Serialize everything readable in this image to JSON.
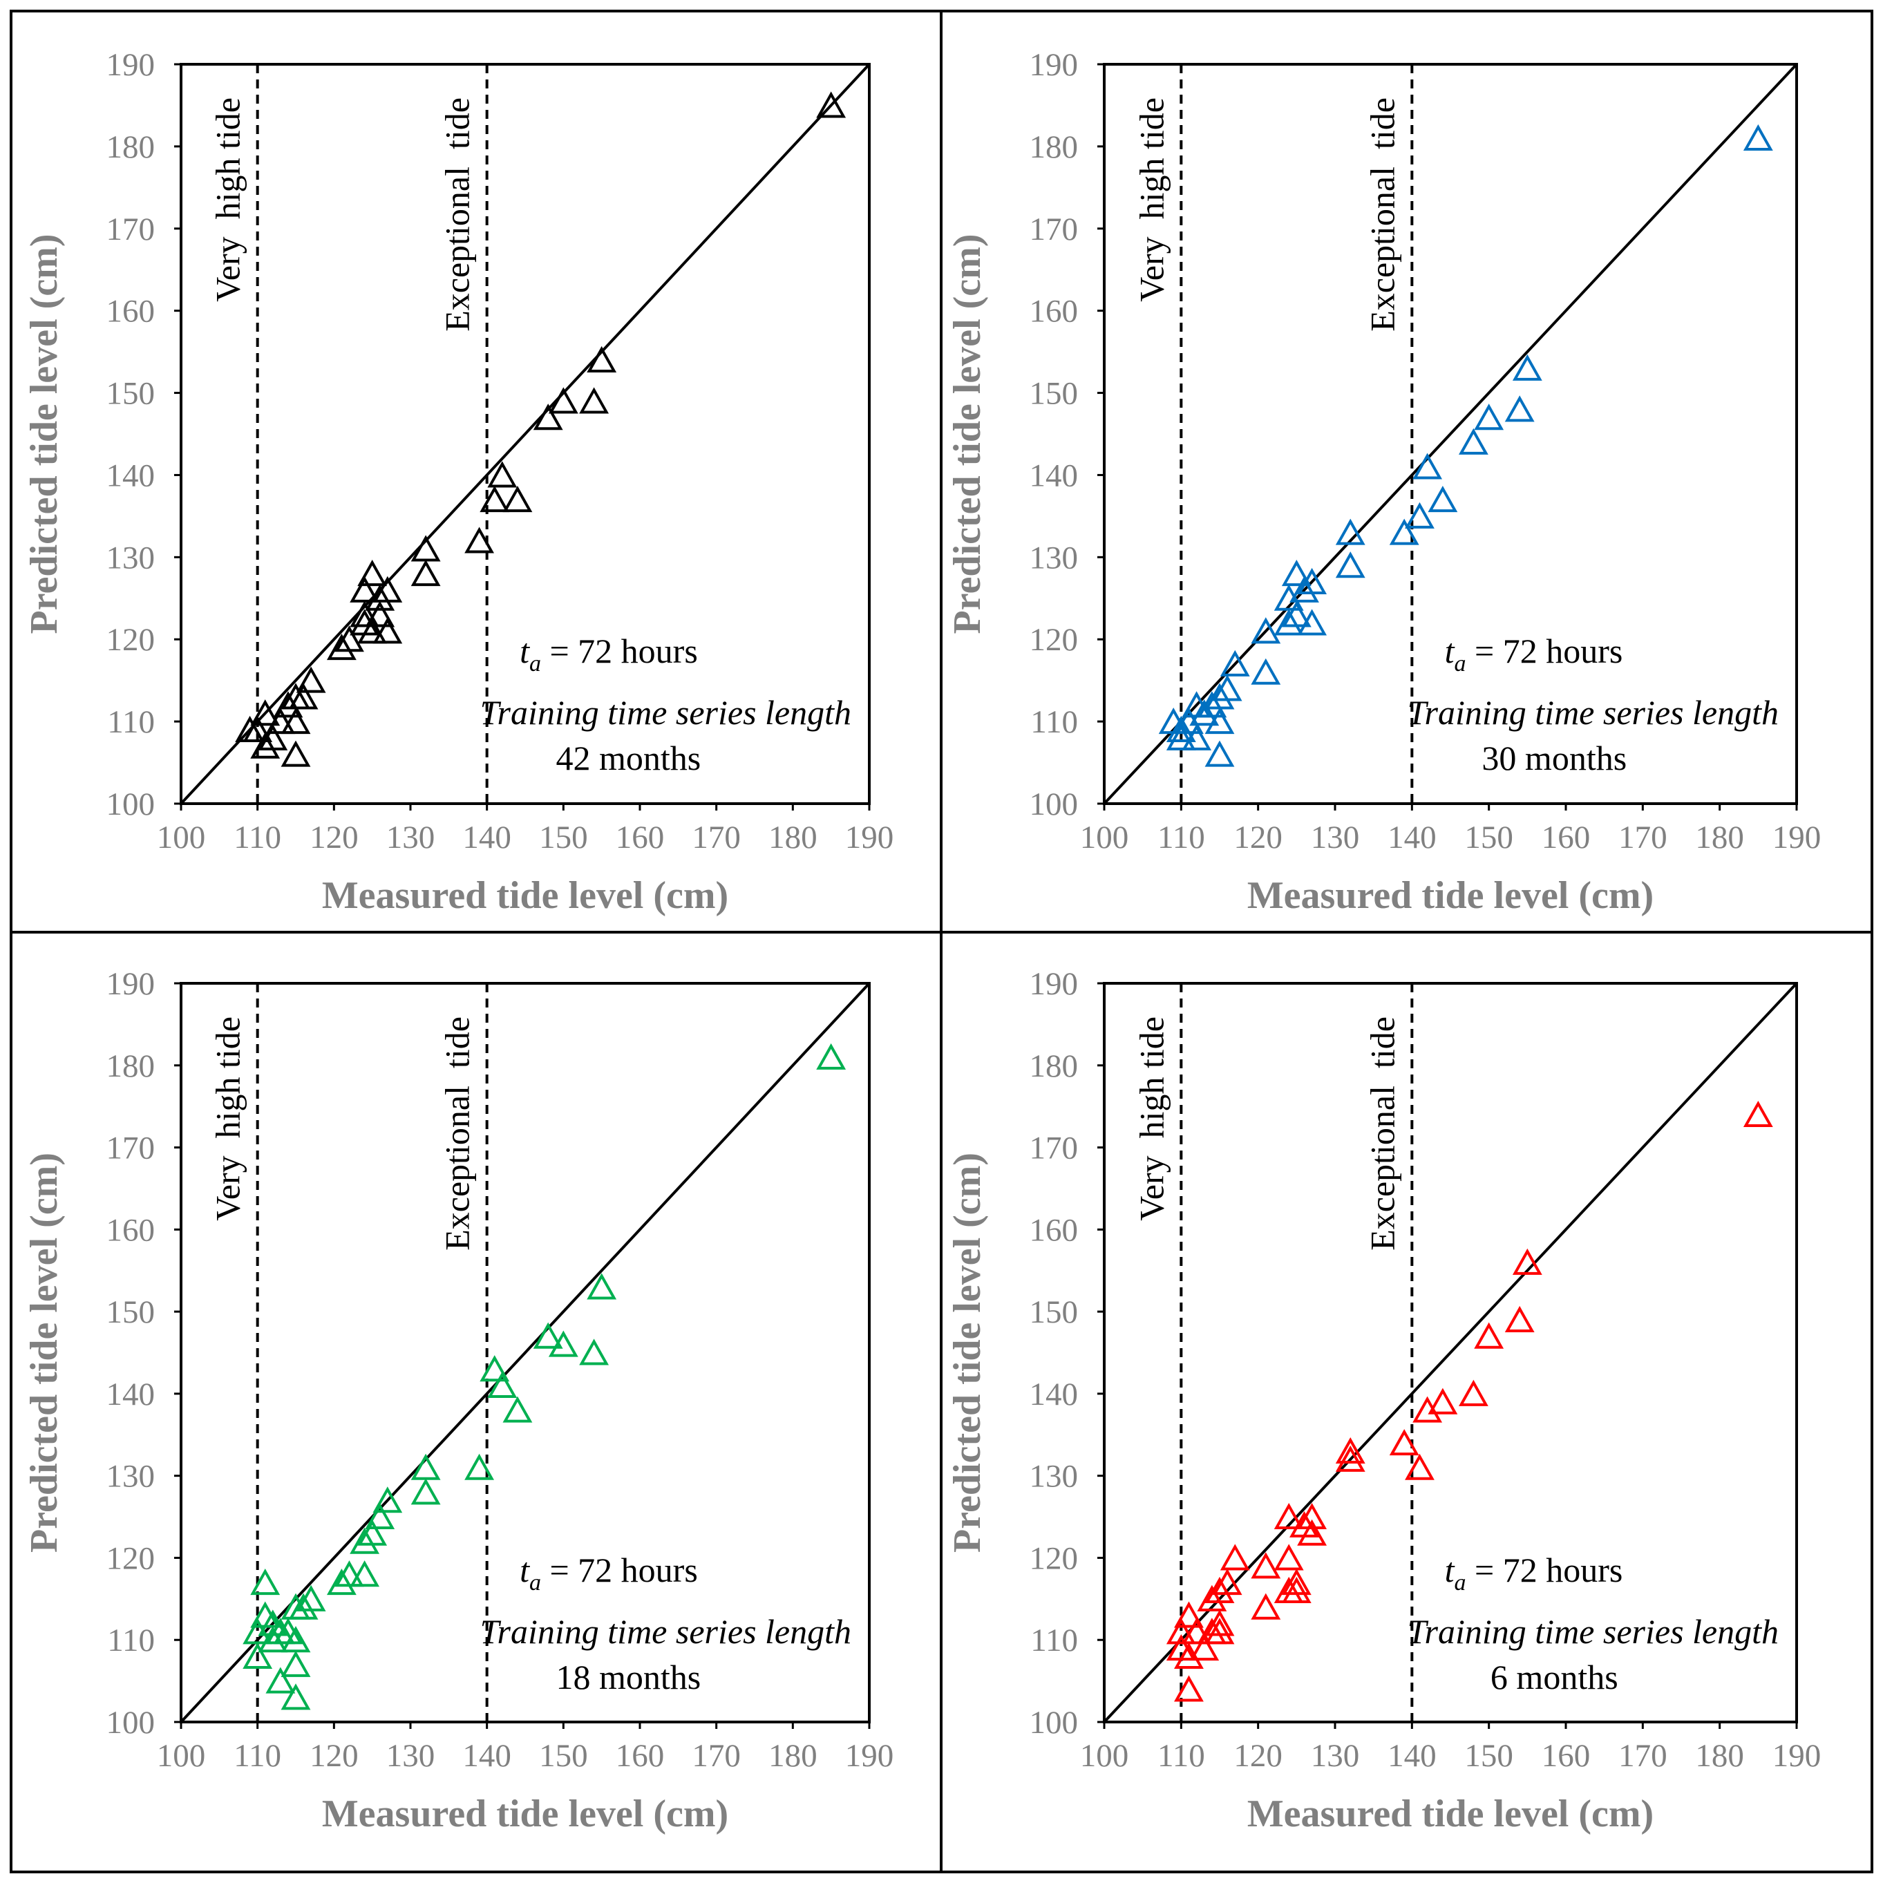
{
  "chart_data": [
    {
      "type": "scatter",
      "panel": "top-left",
      "color": "#000000",
      "xlabel": "Measured tide level (cm)",
      "ylabel": "Predicted tide level (cm)",
      "xlim": [
        100,
        190
      ],
      "ylim": [
        100,
        190
      ],
      "ticks": [
        "100",
        "110",
        "120",
        "130",
        "140",
        "150",
        "160",
        "170",
        "180",
        "190"
      ],
      "thresholds": [
        {
          "x": 110,
          "label": "Very  high tide"
        },
        {
          "x": 140,
          "label": "Exceptional  tide"
        }
      ],
      "reference_line": "y = x",
      "ta_symbol": "t",
      "ta_sub": "a",
      "ta_text": " = 72 hours",
      "training_label": "Training time series length",
      "training_value": "42 months",
      "points": [
        [
          185,
          185
        ],
        [
          155,
          154
        ],
        [
          154,
          149
        ],
        [
          150,
          149
        ],
        [
          148,
          147
        ],
        [
          142,
          140
        ],
        [
          141,
          137
        ],
        [
          144,
          137
        ],
        [
          139,
          132
        ],
        [
          132,
          131
        ],
        [
          132,
          128
        ],
        [
          127,
          126
        ],
        [
          125,
          128
        ],
        [
          124,
          126
        ],
        [
          126,
          125
        ],
        [
          124,
          123
        ],
        [
          126,
          123
        ],
        [
          125,
          121
        ],
        [
          124,
          122
        ],
        [
          127,
          121
        ],
        [
          121,
          119
        ],
        [
          122,
          120
        ],
        [
          117,
          115
        ],
        [
          116,
          113
        ],
        [
          115,
          113
        ],
        [
          114,
          112
        ],
        [
          111,
          111
        ],
        [
          113,
          110
        ],
        [
          115,
          110
        ],
        [
          110,
          109
        ],
        [
          112,
          108
        ],
        [
          111,
          107
        ],
        [
          115,
          106
        ],
        [
          109,
          109
        ]
      ]
    },
    {
      "type": "scatter",
      "panel": "top-right",
      "color": "#0070C0",
      "xlabel": "Measured tide level (cm)",
      "ylabel": "Predicted tide level (cm)",
      "xlim": [
        100,
        190
      ],
      "ylim": [
        100,
        190
      ],
      "ticks": [
        "100",
        "110",
        "120",
        "130",
        "140",
        "150",
        "160",
        "170",
        "180",
        "190"
      ],
      "thresholds": [
        {
          "x": 110,
          "label": "Very  high tide"
        },
        {
          "x": 140,
          "label": "Exceptional  tide"
        }
      ],
      "reference_line": "y = x",
      "ta_symbol": "t",
      "ta_sub": "a",
      "ta_text": " = 72 hours",
      "training_label": "Training time series length",
      "training_value": "30 months",
      "points": [
        [
          185,
          181
        ],
        [
          155,
          153
        ],
        [
          150,
          147
        ],
        [
          154,
          148
        ],
        [
          148,
          144
        ],
        [
          142,
          141
        ],
        [
          144,
          137
        ],
        [
          141,
          135
        ],
        [
          139,
          133
        ],
        [
          132,
          133
        ],
        [
          132,
          129
        ],
        [
          127,
          127
        ],
        [
          125,
          128
        ],
        [
          126,
          126
        ],
        [
          124,
          125
        ],
        [
          125,
          123
        ],
        [
          124,
          122
        ],
        [
          127,
          122
        ],
        [
          121,
          121
        ],
        [
          121,
          116
        ],
        [
          117,
          117
        ],
        [
          116,
          114
        ],
        [
          115,
          113
        ],
        [
          114,
          112
        ],
        [
          112,
          112
        ],
        [
          113,
          111
        ],
        [
          111,
          110
        ],
        [
          109,
          110
        ],
        [
          110,
          109
        ],
        [
          115,
          110
        ],
        [
          112,
          108
        ],
        [
          110,
          108
        ],
        [
          115,
          106
        ]
      ]
    },
    {
      "type": "scatter",
      "panel": "bottom-left",
      "color": "#00B050",
      "xlabel": "Measured tide level (cm)",
      "ylabel": "Predicted tide level (cm)",
      "xlim": [
        100,
        190
      ],
      "ylim": [
        100,
        190
      ],
      "ticks": [
        "100",
        "110",
        "120",
        "130",
        "140",
        "150",
        "160",
        "170",
        "180",
        "190"
      ],
      "thresholds": [
        {
          "x": 110,
          "label": "Very  high tide"
        },
        {
          "x": 140,
          "label": "Exceptional  tide"
        }
      ],
      "reference_line": "y = x",
      "ta_symbol": "t",
      "ta_sub": "a",
      "ta_text": " = 72 hours",
      "training_label": "Training time series length",
      "training_value": "18 months",
      "points": [
        [
          185,
          181
        ],
        [
          155,
          153
        ],
        [
          154,
          145
        ],
        [
          148,
          147
        ],
        [
          150,
          146
        ],
        [
          141,
          143
        ],
        [
          142,
          141
        ],
        [
          144,
          138
        ],
        [
          139,
          131
        ],
        [
          132,
          131
        ],
        [
          132,
          128
        ],
        [
          127,
          127
        ],
        [
          126,
          125
        ],
        [
          125,
          123
        ],
        [
          124,
          122
        ],
        [
          124,
          118
        ],
        [
          122,
          118
        ],
        [
          121,
          117
        ],
        [
          117,
          115
        ],
        [
          116,
          114
        ],
        [
          115,
          114
        ],
        [
          111,
          117
        ],
        [
          111,
          113
        ],
        [
          112,
          112
        ],
        [
          113,
          111
        ],
        [
          114,
          111
        ],
        [
          110,
          111
        ],
        [
          112,
          110
        ],
        [
          115,
          110
        ],
        [
          110,
          108
        ],
        [
          115,
          107
        ],
        [
          113,
          105
        ],
        [
          115,
          103
        ]
      ]
    },
    {
      "type": "scatter",
      "panel": "bottom-right",
      "color": "#FF0000",
      "xlabel": "Measured tide level (cm)",
      "ylabel": "Predicted tide level (cm)",
      "xlim": [
        100,
        190
      ],
      "ylim": [
        100,
        190
      ],
      "ticks": [
        "100",
        "110",
        "120",
        "130",
        "140",
        "150",
        "160",
        "170",
        "180",
        "190"
      ],
      "thresholds": [
        {
          "x": 110,
          "label": "Very  high tide"
        },
        {
          "x": 140,
          "label": "Exceptional  tide"
        }
      ],
      "reference_line": "y = x",
      "ta_symbol": "t",
      "ta_sub": "a",
      "ta_text": " = 72 hours",
      "training_label": "Training time series length",
      "training_value": "6 months",
      "points": [
        [
          185,
          174
        ],
        [
          155,
          156
        ],
        [
          154,
          149
        ],
        [
          150,
          147
        ],
        [
          148,
          140
        ],
        [
          144,
          139
        ],
        [
          142,
          138
        ],
        [
          139,
          134
        ],
        [
          141,
          131
        ],
        [
          132,
          133
        ],
        [
          132,
          132
        ],
        [
          127,
          125
        ],
        [
          127,
          123
        ],
        [
          126,
          124
        ],
        [
          124,
          125
        ],
        [
          124,
          120
        ],
        [
          125,
          117
        ],
        [
          124,
          116
        ],
        [
          125,
          116
        ],
        [
          121,
          119
        ],
        [
          121,
          114
        ],
        [
          117,
          120
        ],
        [
          116,
          117
        ],
        [
          115,
          116
        ],
        [
          114,
          115
        ],
        [
          111,
          113
        ],
        [
          115,
          112
        ],
        [
          114,
          111
        ],
        [
          115,
          111
        ],
        [
          112,
          111
        ],
        [
          110,
          111
        ],
        [
          113,
          109
        ],
        [
          110,
          109
        ],
        [
          111,
          108
        ],
        [
          111,
          104
        ]
      ]
    }
  ]
}
